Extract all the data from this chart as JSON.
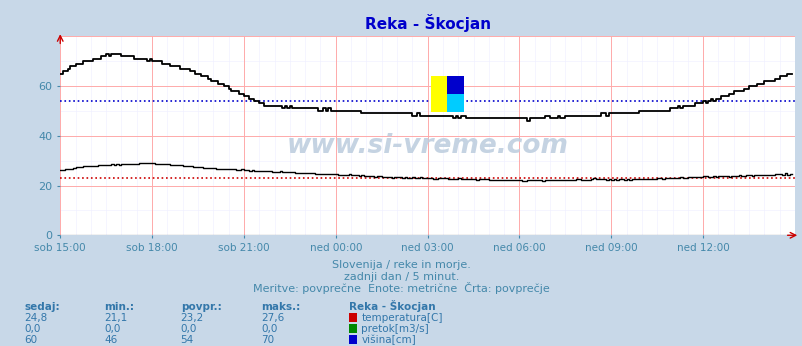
{
  "title": "Reka - Škocjan",
  "title_color": "#0000cc",
  "bg_color": "#c8d8e8",
  "plot_bg_color": "#ffffff",
  "grid_color_v": "#ffaaaa",
  "grid_color_h": "#ffaaaa",
  "grid_minor_color": "#eeeeff",
  "xlabel_ticks": [
    "sob 15:00",
    "sob 18:00",
    "sob 21:00",
    "ned 00:00",
    "ned 03:00",
    "ned 06:00",
    "ned 09:00",
    "ned 12:00"
  ],
  "yticks": [
    0,
    20,
    40,
    60
  ],
  "ylim": [
    0,
    80
  ],
  "xlim": [
    0,
    288
  ],
  "tick_label_color": "#4488aa",
  "watermark": "www.si-vreme.com",
  "watermark_color": "#bbccdd",
  "subtitle1": "Slovenija / reke in morje.",
  "subtitle2": "zadnji dan / 5 minut.",
  "subtitle3": "Meritve: povprečne  Enote: metrične  Črta: povprečje",
  "subtitle_color": "#4488aa",
  "legend_title": "Reka - Škocjan",
  "legend_colors": [
    "#cc0000",
    "#008800",
    "#0000cc"
  ],
  "table_headers": [
    "sedaj:",
    "min.:",
    "povpr.:",
    "maks.:"
  ],
  "table_data": [
    [
      "24,8",
      "21,1",
      "23,2",
      "27,6"
    ],
    [
      "0,0",
      "0,0",
      "0,0",
      "0,0"
    ],
    [
      "60",
      "46",
      "54",
      "70"
    ]
  ],
  "temp_avg": 23.2,
  "height_avg": 54,
  "temp_line_color": "#000000",
  "flow_line_color": "#000000",
  "height_line_color": "#000000",
  "temp_avg_color": "#cc0000",
  "flow_avg_color": "#008800",
  "height_avg_color": "#0000cc",
  "logo_yellow": "#ffff00",
  "logo_cyan": "#00ccff",
  "logo_blue": "#0000cc"
}
